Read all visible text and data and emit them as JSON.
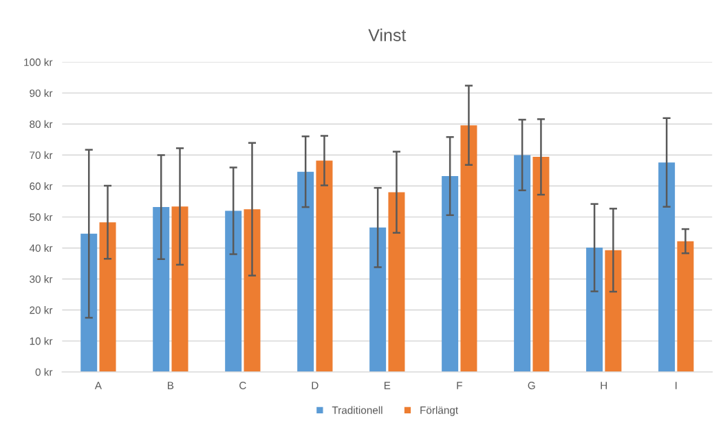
{
  "chart_data": {
    "type": "bar",
    "title": "Vinst",
    "categories": [
      "A",
      "B",
      "C",
      "D",
      "E",
      "F",
      "G",
      "H",
      "I"
    ],
    "series": [
      {
        "name": "Traditionell",
        "color": "#5b9bd5",
        "values": [
          44.6,
          53.2,
          52.0,
          64.6,
          46.6,
          63.2,
          70.0,
          40.1,
          67.6
        ],
        "errors": [
          27.1,
          16.8,
          14.0,
          11.4,
          12.8,
          12.6,
          11.4,
          14.1,
          14.3
        ]
      },
      {
        "name": "Förlängt",
        "color": "#ed7d31",
        "values": [
          48.3,
          53.4,
          52.5,
          68.2,
          58.0,
          79.6,
          69.4,
          39.3,
          42.2
        ],
        "errors": [
          11.8,
          18.8,
          21.4,
          8.0,
          13.1,
          12.8,
          12.2,
          13.4,
          3.9
        ]
      }
    ],
    "ylim": [
      0,
      100
    ],
    "yticks": [
      {
        "value": 0,
        "label": "0 kr"
      },
      {
        "value": 10,
        "label": "10 kr"
      },
      {
        "value": 20,
        "label": "20 kr"
      },
      {
        "value": 30,
        "label": "30 kr"
      },
      {
        "value": 40,
        "label": "40 kr"
      },
      {
        "value": 50,
        "label": "50 kr"
      },
      {
        "value": 60,
        "label": "60 kr"
      },
      {
        "value": 70,
        "label": "70 kr"
      },
      {
        "value": 80,
        "label": "80 kr"
      },
      {
        "value": 90,
        "label": "90 kr"
      },
      {
        "value": 100,
        "label": "100 kr"
      }
    ],
    "grid": "y",
    "legend": "bottom"
  }
}
